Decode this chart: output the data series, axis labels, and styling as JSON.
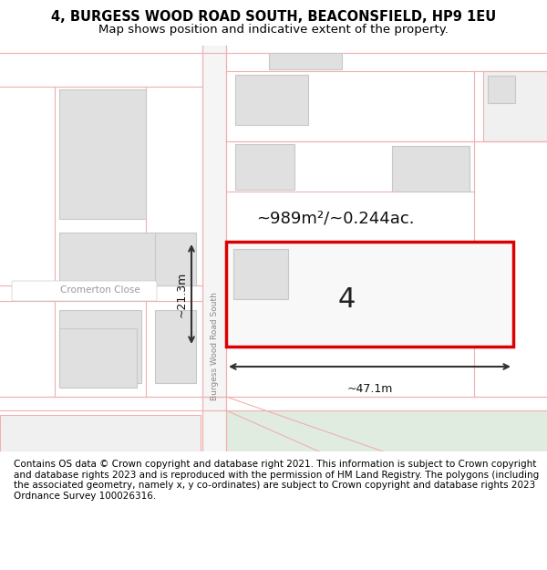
{
  "title": "4, BURGESS WOOD ROAD SOUTH, BEACONSFIELD, HP9 1EU",
  "subtitle": "Map shows position and indicative extent of the property.",
  "footer": "Contains OS data © Crown copyright and database right 2021. This information is subject to Crown copyright and database rights 2023 and is reproduced with the permission of HM Land Registry. The polygons (including the associated geometry, namely x, y co-ordinates) are subject to Crown copyright and database rights 2023 Ordnance Survey 100026316.",
  "bg_color": "#ffffff",
  "map_bg": "#ffffff",
  "road_color": "#f0b0b0",
  "building_fill": "#e0e0e0",
  "building_edge": "#c8c8c8",
  "highlight_fill": "#f8f8f8",
  "highlight_edge": "#dd0000",
  "green_fill": "#cce0cc",
  "road_label": "Burgess Wood Road South",
  "street_label": "Cromerton Close",
  "area_label": "~989m²/~0.244ac.",
  "number_label": "4",
  "width_label": "~47.1m",
  "height_label": "~21.3m",
  "title_fontsize": 10.5,
  "subtitle_fontsize": 9.5,
  "footer_fontsize": 7.5,
  "title_weight": "bold"
}
